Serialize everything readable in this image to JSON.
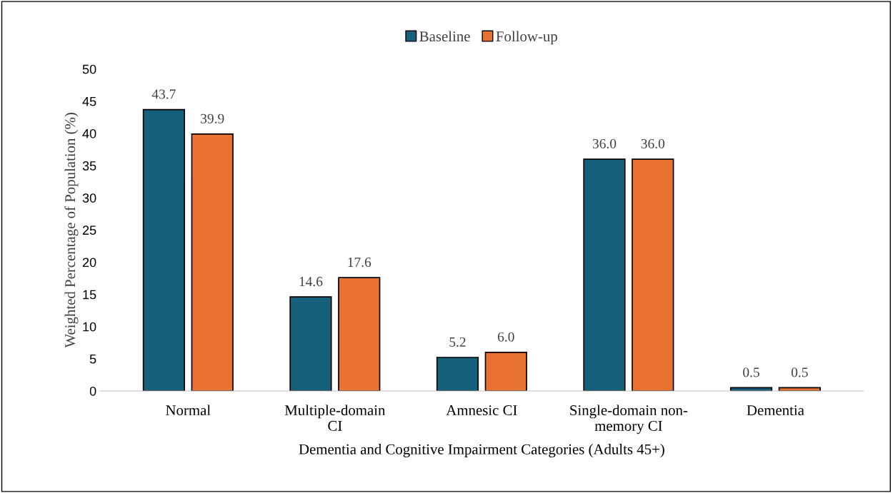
{
  "chart_data": {
    "type": "bar",
    "xlabel": "Dementia and Cognitive Impairment Categories (Adults 45+)",
    "ylabel": "Weighted Percentage of Population (%)",
    "categories": [
      "Normal",
      "Multiple-domain\nCI",
      "Amnesic CI",
      "Single-domain non-\nmemory CI",
      "Dementia"
    ],
    "series": [
      {
        "name": "Baseline",
        "color": "#15607a",
        "values": [
          43.7,
          14.6,
          5.2,
          36.0,
          0.5
        ],
        "value_labels": [
          "43.7",
          "14.6",
          "5.2",
          "36.0",
          "0.5"
        ]
      },
      {
        "name": "Follow-up",
        "color": "#e97132",
        "values": [
          39.9,
          17.6,
          6.0,
          36.0,
          0.5
        ],
        "value_labels": [
          "39.9",
          "17.6",
          "6.0",
          "36.0",
          "0.5"
        ]
      }
    ],
    "ylim": [
      0,
      50
    ],
    "yticks": [
      0,
      5,
      10,
      15,
      20,
      25,
      30,
      35,
      40,
      45,
      50
    ],
    "grid": false,
    "legend": "top"
  }
}
